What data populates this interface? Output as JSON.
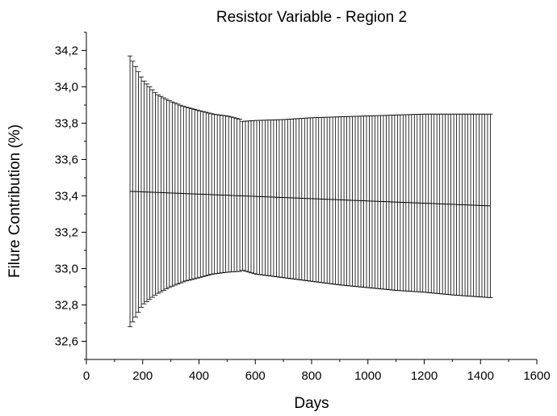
{
  "chart_data": {
    "type": "line",
    "title": "Resistor Variable - Region 2",
    "xlabel": "Days",
    "ylabel": "Filure Contribution (%)",
    "xlim": [
      0,
      1600
    ],
    "ylim": [
      32.5,
      34.3
    ],
    "x_ticks": [
      "0",
      "200",
      "400",
      "600",
      "800",
      "1000",
      "1200",
      "1400",
      "1600"
    ],
    "x_tick_values": [
      0,
      200,
      400,
      600,
      800,
      1000,
      1200,
      1400,
      1600
    ],
    "y_ticks": [
      "32,6",
      "32,8",
      "33,0",
      "33,2",
      "33,4",
      "33,6",
      "33,8",
      "34,0",
      "34,2"
    ],
    "y_tick_values": [
      32.6,
      32.8,
      33.0,
      33.2,
      33.4,
      33.6,
      33.8,
      34.0,
      34.2
    ],
    "grid": false,
    "legend": "none",
    "series": [
      {
        "x_start": 155,
        "x_end": 1435,
        "x_step": 10,
        "mean_start": 33.425,
        "mean_end": 33.345,
        "error_upper_profile": [
          [
            155,
            34.17
          ],
          [
            200,
            34.04
          ],
          [
            250,
            33.96
          ],
          [
            300,
            33.92
          ],
          [
            350,
            33.89
          ],
          [
            400,
            33.87
          ],
          [
            450,
            33.85
          ],
          [
            500,
            33.84
          ],
          [
            550,
            33.82
          ],
          [
            555,
            33.81
          ],
          [
            600,
            33.815
          ],
          [
            700,
            33.82
          ],
          [
            800,
            33.83
          ],
          [
            900,
            33.835
          ],
          [
            1000,
            33.84
          ],
          [
            1100,
            33.845
          ],
          [
            1200,
            33.85
          ],
          [
            1300,
            33.85
          ],
          [
            1435,
            33.85
          ]
        ],
        "error_lower_profile": [
          [
            155,
            32.68
          ],
          [
            200,
            32.8
          ],
          [
            250,
            32.86
          ],
          [
            300,
            32.9
          ],
          [
            350,
            32.93
          ],
          [
            400,
            32.95
          ],
          [
            450,
            32.97
          ],
          [
            500,
            32.98
          ],
          [
            550,
            32.985
          ],
          [
            555,
            32.99
          ],
          [
            600,
            32.97
          ],
          [
            700,
            32.95
          ],
          [
            800,
            32.93
          ],
          [
            900,
            32.91
          ],
          [
            1000,
            32.895
          ],
          [
            1100,
            32.88
          ],
          [
            1200,
            32.87
          ],
          [
            1300,
            32.855
          ],
          [
            1435,
            32.84
          ]
        ]
      }
    ]
  }
}
